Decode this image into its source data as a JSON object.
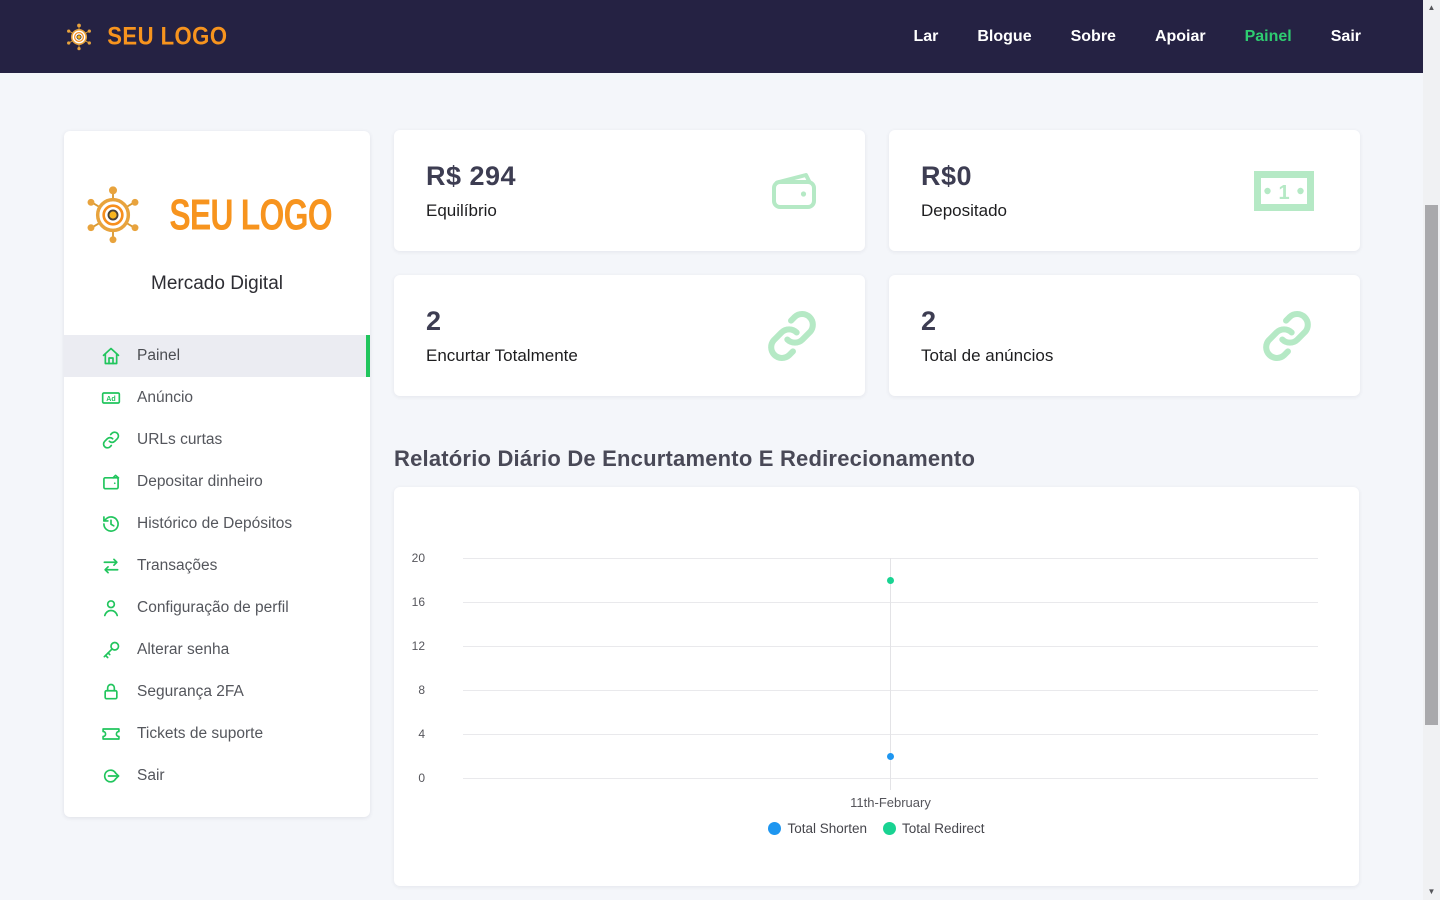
{
  "navbar": {
    "logo_text": "SEU LOGO",
    "items": [
      {
        "label": "Lar",
        "active": false
      },
      {
        "label": "Blogue",
        "active": false
      },
      {
        "label": "Sobre",
        "active": false
      },
      {
        "label": "Apoiar",
        "active": false
      },
      {
        "label": "Painel",
        "active": true
      },
      {
        "label": "Sair",
        "active": false
      }
    ]
  },
  "sidebar": {
    "logo_text": "SEU LOGO",
    "subtitle": "Mercado Digital",
    "items": [
      {
        "label": "Painel",
        "icon": "home",
        "active": true
      },
      {
        "label": "Anúncio",
        "icon": "ad",
        "active": false
      },
      {
        "label": "URLs curtas",
        "icon": "link",
        "active": false
      },
      {
        "label": "Depositar dinheiro",
        "icon": "wallet",
        "active": false
      },
      {
        "label": "Histórico de Depósitos",
        "icon": "history",
        "active": false
      },
      {
        "label": "Transações",
        "icon": "transfer",
        "active": false
      },
      {
        "label": "Configuração de perfil",
        "icon": "user",
        "active": false
      },
      {
        "label": "Alterar senha",
        "icon": "key",
        "active": false
      },
      {
        "label": "Segurança 2FA",
        "icon": "lock",
        "active": false
      },
      {
        "label": "Tickets de suporte",
        "icon": "ticket",
        "active": false
      },
      {
        "label": "Sair",
        "icon": "logout",
        "active": false
      }
    ]
  },
  "stats": [
    {
      "value": "R$ 294",
      "label": "Equilíbrio",
      "icon": "wallet-big"
    },
    {
      "value": "R$0",
      "label": "Depositado",
      "icon": "banknote"
    },
    {
      "value": "2",
      "label": "Encurtar Totalmente",
      "icon": "link-big"
    },
    {
      "value": "2",
      "label": "Total de anúncios",
      "icon": "link-big"
    }
  ],
  "section_title": "Relatório Diário De Encurtamento E Redirecionamento",
  "chart_data": {
    "type": "scatter",
    "title": "Relatório Diário De Encurtamento E Redirecionamento",
    "categories": [
      "11th-February"
    ],
    "series": [
      {
        "name": "Total Shorten",
        "color": "#1e96f0",
        "values": [
          2
        ]
      },
      {
        "name": "Total Redirect",
        "color": "#19d392",
        "values": [
          18
        ]
      }
    ],
    "yticks": [
      0,
      4,
      8,
      12,
      16,
      20
    ],
    "ylim": [
      0,
      20
    ],
    "grid": true,
    "legend_position": "bottom"
  },
  "colors": {
    "navbar_bg": "#252243",
    "brand_orange": "#f7941e",
    "accent_green": "#21c55d",
    "nav_active_green": "#2ecc71",
    "icon_pale_green": "#b5e9c5",
    "chart_blue": "#1e96f0",
    "chart_green": "#19d392",
    "page_bg": "#f4f6fa"
  }
}
